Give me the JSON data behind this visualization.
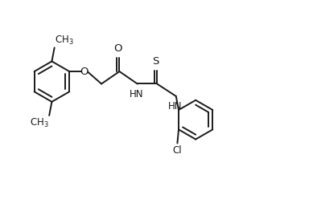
{
  "bg_color": "#ffffff",
  "line_color": "#1a1a1a",
  "line_width": 1.4,
  "font_size": 8.5,
  "figsize": [
    3.89,
    2.48
  ],
  "dpi": 100,
  "xlim": [
    0,
    9.5
  ],
  "ylim": [
    0,
    6.0
  ]
}
